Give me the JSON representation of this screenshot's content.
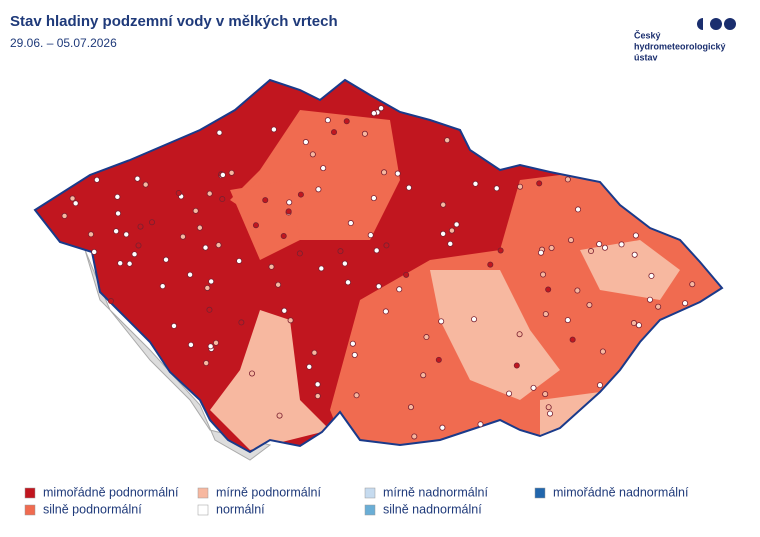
{
  "header": {
    "title": "Stav hladiny podzemní vody v mělkých vrtech",
    "subtitle": "29.06. – 05.07.2026"
  },
  "logo": {
    "lines": [
      "Český",
      "hydrometeorologický",
      "ústav"
    ]
  },
  "legend": [
    {
      "label": "mimořádně podnormální",
      "color": "#c1161f"
    },
    {
      "label": "silně podnormální",
      "color": "#f06b50"
    },
    {
      "label": "mírně podnormální",
      "color": "#f7b8a0"
    },
    {
      "label": "normální",
      "color": "#ffffff"
    },
    {
      "label": "mírně nadnormální",
      "color": "#c6dbef"
    },
    {
      "label": "silně nadnormální",
      "color": "#6aaed6"
    },
    {
      "label": "mimořádně nadnormální",
      "color": "#2166ac"
    }
  ]
}
